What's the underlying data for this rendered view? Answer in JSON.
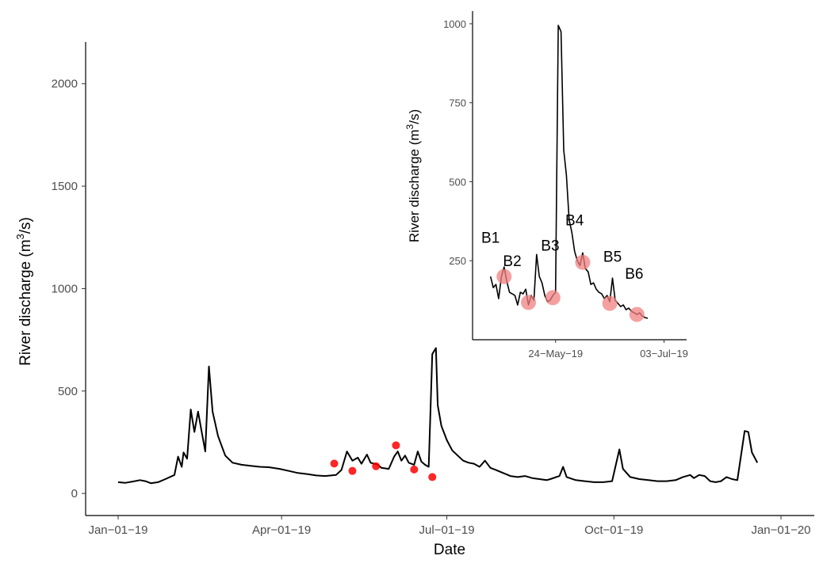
{
  "colors": {
    "line": "#000000",
    "main_points": "#ff0000",
    "inset_points": "#f08080"
  },
  "chart_data": [
    {
      "type": "line",
      "xlabel": "Date",
      "ylabel_main": "River discharge  (m",
      "ylabel_sup": "3",
      "ylabel_tail": "/s)",
      "xlim": [
        "2019-01-01",
        "2020-01-01"
      ],
      "ylim": [
        -100,
        2200
      ],
      "x_ticks": [
        {
          "date": "2019-01-01",
          "label": "Jan−01−19"
        },
        {
          "date": "2019-04-01",
          "label": "Apr−01−19"
        },
        {
          "date": "2019-07-01",
          "label": "Jul−01−19"
        },
        {
          "date": "2019-10-01",
          "label": "Oct−01−19"
        },
        {
          "date": "2020-01-01",
          "label": "Jan−01−20"
        }
      ],
      "y_ticks": [
        0,
        500,
        1000,
        1500,
        2000
      ],
      "grid": false,
      "series": [
        {
          "values": [
            [
              "2019-01-01",
              55
            ],
            [
              "2019-01-05",
              52
            ],
            [
              "2019-01-09",
              58
            ],
            [
              "2019-01-13",
              65
            ],
            [
              "2019-01-16",
              60
            ],
            [
              "2019-01-19",
              50
            ],
            [
              "2019-01-23",
              55
            ],
            [
              "2019-01-27",
              70
            ],
            [
              "2019-02-01",
              90
            ],
            [
              "2019-02-03",
              180
            ],
            [
              "2019-02-05",
              130
            ],
            [
              "2019-02-06",
              200
            ],
            [
              "2019-02-08",
              170
            ],
            [
              "2019-02-10",
              410
            ],
            [
              "2019-02-12",
              300
            ],
            [
              "2019-02-14",
              400
            ],
            [
              "2019-02-16",
              300
            ],
            [
              "2019-02-18",
              205
            ],
            [
              "2019-02-20",
              620
            ],
            [
              "2019-02-22",
              400
            ],
            [
              "2019-02-25",
              280
            ],
            [
              "2019-03-01",
              185
            ],
            [
              "2019-03-05",
              150
            ],
            [
              "2019-03-10",
              140
            ],
            [
              "2019-03-15",
              135
            ],
            [
              "2019-03-20",
              130
            ],
            [
              "2019-03-25",
              128
            ],
            [
              "2019-03-31",
              120
            ],
            [
              "2019-04-05",
              110
            ],
            [
              "2019-04-10",
              100
            ],
            [
              "2019-04-15",
              95
            ],
            [
              "2019-04-20",
              88
            ],
            [
              "2019-04-25",
              85
            ],
            [
              "2019-05-01",
              90
            ],
            [
              "2019-05-04",
              115
            ],
            [
              "2019-05-07",
              205
            ],
            [
              "2019-05-10",
              160
            ],
            [
              "2019-05-13",
              175
            ],
            [
              "2019-05-15",
              145
            ],
            [
              "2019-05-18",
              190
            ],
            [
              "2019-05-20",
              150
            ],
            [
              "2019-05-24",
              140
            ],
            [
              "2019-05-26",
              125
            ],
            [
              "2019-05-30",
              120
            ],
            [
              "2019-06-02",
              180
            ],
            [
              "2019-06-04",
              205
            ],
            [
              "2019-06-06",
              160
            ],
            [
              "2019-06-08",
              185
            ],
            [
              "2019-06-10",
              150
            ],
            [
              "2019-06-13",
              140
            ],
            [
              "2019-06-15",
              205
            ],
            [
              "2019-06-17",
              155
            ],
            [
              "2019-06-19",
              140
            ],
            [
              "2019-06-21",
              130
            ],
            [
              "2019-06-23",
              680
            ],
            [
              "2019-06-25",
              710
            ],
            [
              "2019-06-26",
              430
            ],
            [
              "2019-06-28",
              330
            ],
            [
              "2019-07-01",
              260
            ],
            [
              "2019-07-04",
              210
            ],
            [
              "2019-07-07",
              185
            ],
            [
              "2019-07-10",
              160
            ],
            [
              "2019-07-13",
              150
            ],
            [
              "2019-07-16",
              145
            ],
            [
              "2019-07-19",
              130
            ],
            [
              "2019-07-22",
              160
            ],
            [
              "2019-07-25",
              125
            ],
            [
              "2019-07-28",
              115
            ],
            [
              "2019-08-01",
              100
            ],
            [
              "2019-08-05",
              85
            ],
            [
              "2019-08-09",
              80
            ],
            [
              "2019-08-13",
              85
            ],
            [
              "2019-08-17",
              75
            ],
            [
              "2019-08-21",
              70
            ],
            [
              "2019-08-25",
              65
            ],
            [
              "2019-08-27",
              70
            ],
            [
              "2019-09-01",
              85
            ],
            [
              "2019-09-03",
              130
            ],
            [
              "2019-09-05",
              80
            ],
            [
              "2019-09-10",
              65
            ],
            [
              "2019-09-15",
              60
            ],
            [
              "2019-09-20",
              55
            ],
            [
              "2019-09-25",
              55
            ],
            [
              "2019-09-30",
              60
            ],
            [
              "2019-10-04",
              215
            ],
            [
              "2019-10-06",
              120
            ],
            [
              "2019-10-10",
              80
            ],
            [
              "2019-10-15",
              70
            ],
            [
              "2019-10-20",
              65
            ],
            [
              "2019-10-25",
              60
            ],
            [
              "2019-10-30",
              60
            ],
            [
              "2019-11-04",
              65
            ],
            [
              "2019-11-08",
              80
            ],
            [
              "2019-11-12",
              90
            ],
            [
              "2019-11-14",
              75
            ],
            [
              "2019-11-17",
              90
            ],
            [
              "2019-11-20",
              85
            ],
            [
              "2019-11-23",
              60
            ],
            [
              "2019-11-26",
              55
            ],
            [
              "2019-11-29",
              60
            ],
            [
              "2019-12-02",
              80
            ],
            [
              "2019-12-05",
              70
            ],
            [
              "2019-12-08",
              65
            ],
            [
              "2019-12-12",
              305
            ],
            [
              "2019-12-14",
              300
            ],
            [
              "2019-12-16",
              200
            ],
            [
              "2019-12-19",
              150
            ]
          ]
        }
      ],
      "highlight_points": [
        [
          "2019-04-30",
          146
        ],
        [
          "2019-05-10",
          110
        ],
        [
          "2019-05-23",
          133
        ],
        [
          "2019-06-03",
          235
        ],
        [
          "2019-06-13",
          117
        ],
        [
          "2019-06-23",
          80
        ]
      ]
    },
    {
      "type": "line",
      "ylabel_main": "River discharge  (m",
      "ylabel_sup": "3",
      "ylabel_tail": "/s)",
      "xlim": [
        "2019-04-26",
        "2019-07-09"
      ],
      "ylim": [
        0,
        1040
      ],
      "x_ticks": [
        {
          "date": "2019-05-24",
          "label": "24−May−19"
        },
        {
          "date": "2019-07-03",
          "label": "03−Jul−19"
        }
      ],
      "y_ticks": [
        250,
        500,
        750,
        1000
      ],
      "grid": false,
      "series": [
        {
          "values": [
            [
              "2019-04-30",
              200
            ],
            [
              "2019-05-01",
              165
            ],
            [
              "2019-05-02",
              175
            ],
            [
              "2019-05-03",
              130
            ],
            [
              "2019-05-04",
              200
            ],
            [
              "2019-05-05",
              230
            ],
            [
              "2019-05-06",
              185
            ],
            [
              "2019-05-07",
              150
            ],
            [
              "2019-05-08",
              145
            ],
            [
              "2019-05-09",
              140
            ],
            [
              "2019-05-10",
              110
            ],
            [
              "2019-05-11",
              150
            ],
            [
              "2019-05-12",
              145
            ],
            [
              "2019-05-13",
              160
            ],
            [
              "2019-05-14",
              110
            ],
            [
              "2019-05-15",
              140
            ],
            [
              "2019-05-16",
              125
            ],
            [
              "2019-05-17",
              270
            ],
            [
              "2019-05-18",
              200
            ],
            [
              "2019-05-19",
              180
            ],
            [
              "2019-05-20",
              140
            ],
            [
              "2019-05-21",
              120
            ],
            [
              "2019-05-22",
              125
            ],
            [
              "2019-05-23",
              140
            ],
            [
              "2019-05-24",
              150
            ],
            [
              "2019-05-25",
              995
            ],
            [
              "2019-05-26",
              975
            ],
            [
              "2019-05-27",
              600
            ],
            [
              "2019-05-28",
              520
            ],
            [
              "2019-05-29",
              380
            ],
            [
              "2019-05-30",
              340
            ],
            [
              "2019-05-31",
              280
            ],
            [
              "2019-06-01",
              250
            ],
            [
              "2019-06-02",
              235
            ],
            [
              "2019-06-03",
              275
            ],
            [
              "2019-06-04",
              225
            ],
            [
              "2019-06-05",
              215
            ],
            [
              "2019-06-06",
              175
            ],
            [
              "2019-06-07",
              180
            ],
            [
              "2019-06-08",
              160
            ],
            [
              "2019-06-09",
              150
            ],
            [
              "2019-06-10",
              145
            ],
            [
              "2019-06-11",
              130
            ],
            [
              "2019-06-12",
              140
            ],
            [
              "2019-06-13",
              120
            ],
            [
              "2019-06-14",
              195
            ],
            [
              "2019-06-15",
              125
            ],
            [
              "2019-06-16",
              115
            ],
            [
              "2019-06-17",
              105
            ],
            [
              "2019-06-18",
              110
            ],
            [
              "2019-06-19",
              95
            ],
            [
              "2019-06-20",
              100
            ],
            [
              "2019-06-21",
              90
            ],
            [
              "2019-06-22",
              85
            ],
            [
              "2019-06-23",
              80
            ],
            [
              "2019-06-24",
              85
            ],
            [
              "2019-06-25",
              75
            ],
            [
              "2019-06-26",
              70
            ],
            [
              "2019-06-27",
              68
            ]
          ]
        }
      ],
      "annotations": [
        {
          "text": "B1",
          "date": "2019-04-30",
          "y": 325
        },
        {
          "text": "B2",
          "date": "2019-05-08",
          "y": 250
        },
        {
          "text": "B3",
          "date": "2019-05-22",
          "y": 300
        },
        {
          "text": "B4",
          "date": "2019-05-31",
          "y": 380
        },
        {
          "text": "B5",
          "date": "2019-06-14",
          "y": 265
        },
        {
          "text": "B6",
          "date": "2019-06-22",
          "y": 210
        }
      ],
      "highlight_points": [
        [
          "2019-05-05",
          200
        ],
        [
          "2019-05-14",
          118
        ],
        [
          "2019-05-23",
          133
        ],
        [
          "2019-06-03",
          245
        ],
        [
          "2019-06-13",
          115
        ],
        [
          "2019-06-23",
          80
        ]
      ]
    }
  ]
}
